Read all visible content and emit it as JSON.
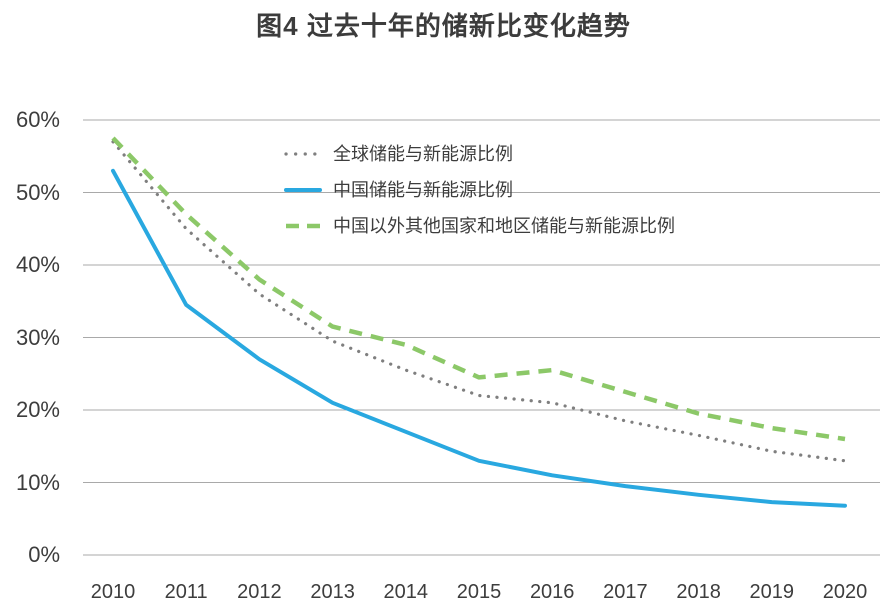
{
  "chart_data": {
    "type": "line",
    "title": "图4 过去十年的储新比变化趋势",
    "x": [
      2010,
      2011,
      2012,
      2013,
      2014,
      2015,
      2016,
      2017,
      2018,
      2019,
      2020
    ],
    "y_ticks": [
      "60%",
      "50%",
      "40%",
      "30%",
      "20%",
      "10%",
      "0%"
    ],
    "y_tick_values": [
      60,
      50,
      40,
      30,
      20,
      10,
      0
    ],
    "ylim": [
      0,
      60
    ],
    "grid": true,
    "legend_position": "inside-top-left",
    "series": [
      {
        "name": "全球储能与新能源比例",
        "style": "dotted",
        "color": "#7f7f7f",
        "values": [
          57,
          45,
          36,
          29.5,
          25.5,
          22,
          21,
          18.5,
          16.5,
          14.3,
          13
        ]
      },
      {
        "name": "中国储能与新能源比例",
        "style": "solid",
        "color": "#29a8e0",
        "values": [
          53,
          34.5,
          27,
          21,
          17,
          13,
          11,
          9.5,
          8.3,
          7.3,
          6.8
        ]
      },
      {
        "name": "中国以外其他国家和地区储能与新能源比例",
        "style": "dashed",
        "color": "#8cc868",
        "values": [
          57.5,
          47,
          38,
          31.5,
          29,
          24.5,
          25.5,
          22.5,
          19.5,
          17.5,
          16
        ]
      }
    ],
    "gridline_color": "#a9a9a9",
    "text_color": "#3d3d3d"
  }
}
